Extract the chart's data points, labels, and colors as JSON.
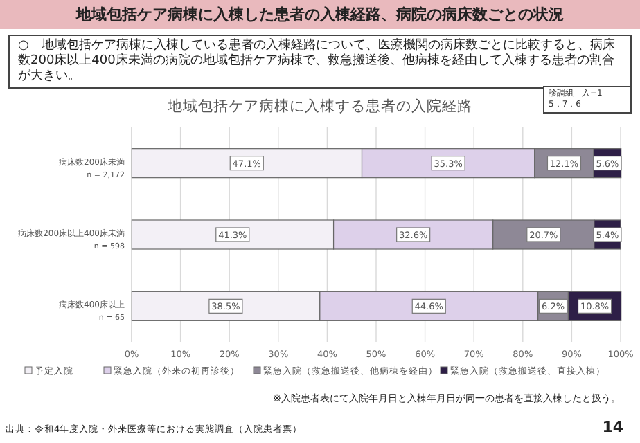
{
  "chart_data": {
    "type": "bar",
    "orientation": "horizontal",
    "stacked": true,
    "title": "地域包括ケア病棟に入棟する患者の入院経路",
    "subtitle": "地域包括ケア病棟に入棟した患者の入棟経路、病院の病床数ごとの状況",
    "categories": [
      "病床数200床未満\nn = 2,172",
      "病床数200床以上400床未満\nn = 598",
      "病床数400床以上\nn = 65"
    ],
    "series": [
      {
        "name": "予定入院",
        "color": "#f3f0f6",
        "values": [
          47.1,
          41.3,
          38.5
        ],
        "value_labels": [
          "47.1%",
          "41.3%",
          "38.5%"
        ]
      },
      {
        "name": "緊急入院（外来の初再診後）",
        "color": "#ddd0ea",
        "values": [
          35.3,
          32.6,
          44.6
        ],
        "value_labels": [
          "35.3%",
          "32.6%",
          "44.6%"
        ]
      },
      {
        "name": "緊急入院（救急搬送後、他病棟を経由）",
        "color": "#8e8896",
        "values": [
          12.1,
          20.7,
          6.2
        ],
        "value_labels": [
          "12.1%",
          "20.7%",
          "6.2%"
        ]
      },
      {
        "name": "緊急入院（救急搬送後、直接入棟）",
        "color": "#2e1f47",
        "values": [
          5.6,
          5.4,
          10.8
        ],
        "value_labels": [
          "5.6%",
          "5.4%",
          "10.8%"
        ]
      }
    ],
    "xlim": [
      0,
      100
    ],
    "xticks": [
      {
        "value": 0,
        "label": "0%"
      },
      {
        "value": 10,
        "label": "10%"
      },
      {
        "value": 20,
        "label": "20%"
      },
      {
        "value": 30,
        "label": "30%"
      },
      {
        "value": 40,
        "label": "40%"
      },
      {
        "value": 50,
        "label": "50%"
      },
      {
        "value": 60,
        "label": "60%"
      },
      {
        "value": 70,
        "label": "70%"
      },
      {
        "value": 80,
        "label": "80%"
      },
      {
        "value": 90,
        "label": "90%"
      },
      {
        "value": 100,
        "label": "100%"
      }
    ],
    "grid": "x",
    "legend": "bottom",
    "annotations": [
      "○　地域包括ケア病棟に入棟している患者の入棟経路について、医療機関の病床数ごとに比較すると、病床数200床以上400床未満の病院の地域包括ケア病棟で、救急搬送後、他病棟を経由して入棟する患者の割合が大きい。",
      "診調組　入−1\n5．7．6",
      "※入院患者表にて入院年月日と入棟年月日が同一の患者を直接入棟したと扱う。",
      "出典：令和4年度入院・外来医療等における実態調査（入院患者票）",
      "14"
    ]
  }
}
